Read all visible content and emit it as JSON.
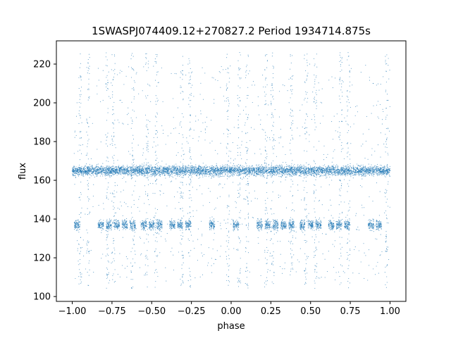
{
  "chart_data": {
    "type": "scatter",
    "title": "1SWASPJ074409.12+270827.2 Period 1934714.875s",
    "xlabel": "phase",
    "ylabel": "flux",
    "xlim": [
      -1.1,
      1.1
    ],
    "ylim": [
      97.5,
      232
    ],
    "xticks": [
      -1.0,
      -0.75,
      -0.5,
      -0.25,
      0.0,
      0.25,
      0.5,
      0.75,
      1.0
    ],
    "xtick_labels": [
      "−1.00",
      "−0.75",
      "−0.50",
      "−0.25",
      "0.00",
      "0.25",
      "0.50",
      "0.75",
      "1.00"
    ],
    "yticks": [
      100,
      120,
      140,
      160,
      180,
      200,
      220
    ],
    "ytick_labels": [
      "100",
      "120",
      "140",
      "160",
      "180",
      "200",
      "220"
    ],
    "grid": false,
    "marker_color": "#1f77b4",
    "series": [
      {
        "baseline_flux": 165,
        "baseline_spread": 3,
        "secondary_flux": 137,
        "secondary_spread": 3,
        "phase_range": [
          -1.0,
          1.0
        ],
        "secondary_clusters_phase": [
          -0.97,
          -0.82,
          -0.77,
          -0.72,
          -0.67,
          -0.62,
          -0.55,
          -0.5,
          -0.45,
          -0.37,
          -0.32,
          -0.27,
          -0.12,
          0.03,
          0.18,
          0.23,
          0.28,
          0.33,
          0.38,
          0.45,
          0.5,
          0.55,
          0.63,
          0.68,
          0.73,
          0.88,
          0.93
        ],
        "vertical_streaks_phase": [
          -0.95,
          -0.9,
          -0.78,
          -0.74,
          -0.62,
          -0.53,
          -0.47,
          -0.31,
          -0.26,
          -0.02,
          0.05,
          0.1,
          0.22,
          0.26,
          0.38,
          0.47,
          0.53,
          0.69,
          0.74,
          0.98
        ],
        "flux_min": 104,
        "flux_max": 226
      }
    ]
  }
}
